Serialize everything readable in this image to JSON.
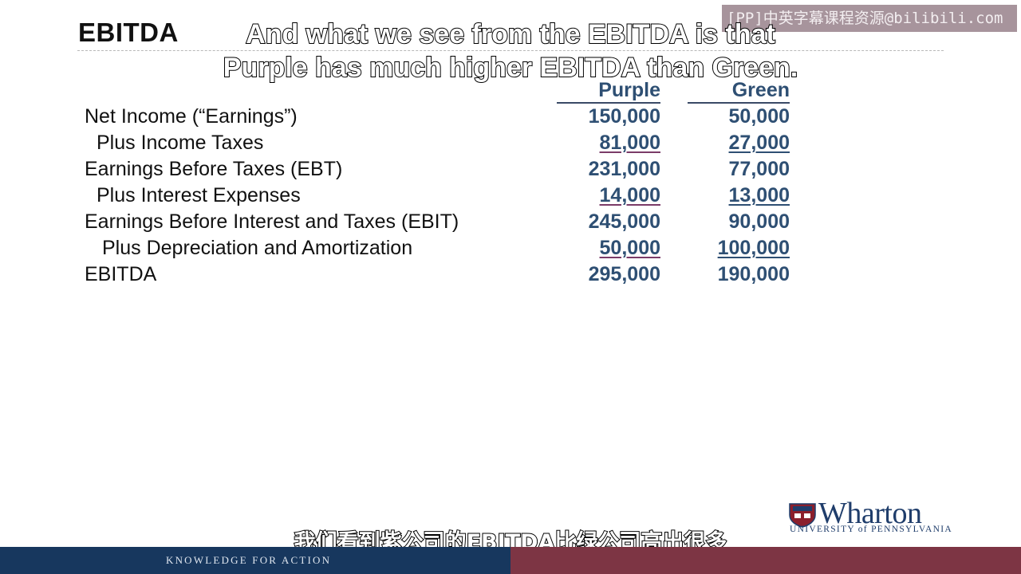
{
  "slide": {
    "title": "EBITDA",
    "watermark": "[PP]中英字幕课程资源@bilibili.com",
    "captions": {
      "english_line1": "And what we see from the EBITDA is that",
      "english_line2": "Purple has much higher EBITDA than Green.",
      "chinese": "我们看到紫公司的EBITDA比绿公司高出很多"
    },
    "columns": {
      "purple": "Purple",
      "green": "Green"
    },
    "rows": [
      {
        "label": "Net Income (“Earnings”)",
        "purple": "150,000",
        "green": "50,000"
      },
      {
        "label": "Plus Income Taxes",
        "purple": "81,000",
        "green": "27,000"
      },
      {
        "label": "Earnings Before Taxes (EBT)",
        "purple": "231,000",
        "green": "77,000"
      },
      {
        "label": "Plus Interest Expenses",
        "purple": "14,000",
        "green": "13,000"
      },
      {
        "label": "Earnings Before Interest and Taxes (EBIT)",
        "purple": "245,000",
        "green": "90,000"
      },
      {
        "label": "Plus Depreciation and Amortization",
        "purple": "50,000",
        "green": "100,000"
      },
      {
        "label": "EBITDA",
        "purple": "295,000",
        "green": "190,000"
      }
    ],
    "logo": {
      "name": "Wharton",
      "subtitle": "UNIVERSITY of PENNSYLVANIA"
    },
    "footer": {
      "tagline": "KNOWLEDGE FOR ACTION"
    },
    "colors": {
      "value_text": "#2e4f73",
      "purple_underline": "#7b3b68",
      "footer_blue": "#17375e",
      "footer_red": "#7d3544"
    }
  }
}
